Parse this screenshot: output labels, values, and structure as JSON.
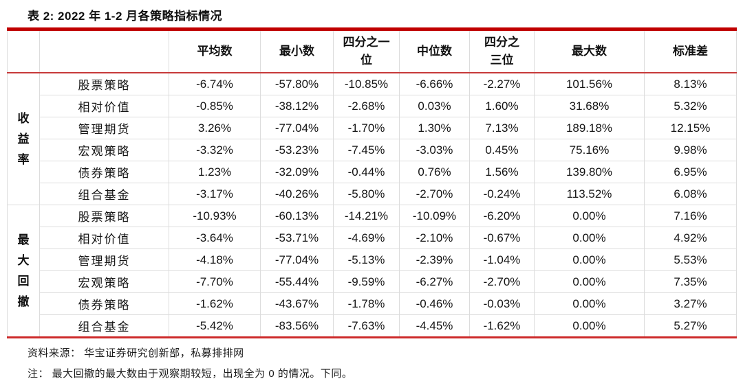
{
  "title": "表 2:  2022 年 1-2 月各策略指标情况",
  "table": {
    "column_headers": [
      "平均数",
      "最小数",
      "四分之一\n位",
      "中位数",
      "四分之\n三位",
      "最大数",
      "标准差"
    ],
    "groups": [
      {
        "label": "收益率",
        "rows": [
          {
            "name": "股票策略",
            "values": [
              "-6.74%",
              "-57.80%",
              "-10.85%",
              "-6.66%",
              "-2.27%",
              "101.56%",
              "8.13%"
            ]
          },
          {
            "name": "相对价值",
            "values": [
              "-0.85%",
              "-38.12%",
              "-2.68%",
              "0.03%",
              "1.60%",
              "31.68%",
              "5.32%"
            ]
          },
          {
            "name": "管理期货",
            "values": [
              "3.26%",
              "-77.04%",
              "-1.70%",
              "1.30%",
              "7.13%",
              "189.18%",
              "12.15%"
            ]
          },
          {
            "name": "宏观策略",
            "values": [
              "-3.32%",
              "-53.23%",
              "-7.45%",
              "-3.03%",
              "0.45%",
              "75.16%",
              "9.98%"
            ]
          },
          {
            "name": "债券策略",
            "values": [
              "1.23%",
              "-32.09%",
              "-0.44%",
              "0.76%",
              "1.56%",
              "139.80%",
              "6.95%"
            ]
          },
          {
            "name": "组合基金",
            "values": [
              "-3.17%",
              "-40.26%",
              "-5.80%",
              "-2.70%",
              "-0.24%",
              "113.52%",
              "6.08%"
            ]
          }
        ]
      },
      {
        "label": "最大回撤",
        "rows": [
          {
            "name": "股票策略",
            "values": [
              "-10.93%",
              "-60.13%",
              "-14.21%",
              "-10.09%",
              "-6.20%",
              "0.00%",
              "7.16%"
            ]
          },
          {
            "name": "相对价值",
            "values": [
              "-3.64%",
              "-53.71%",
              "-4.69%",
              "-2.10%",
              "-0.67%",
              "0.00%",
              "4.92%"
            ]
          },
          {
            "name": "管理期货",
            "values": [
              "-4.18%",
              "-77.04%",
              "-5.13%",
              "-2.39%",
              "-1.04%",
              "0.00%",
              "5.53%"
            ]
          },
          {
            "name": "宏观策略",
            "values": [
              "-7.70%",
              "-55.44%",
              "-9.59%",
              "-6.27%",
              "-2.70%",
              "0.00%",
              "7.35%"
            ]
          },
          {
            "name": "债券策略",
            "values": [
              "-1.62%",
              "-43.67%",
              "-1.78%",
              "-0.46%",
              "-0.03%",
              "0.00%",
              "3.27%"
            ]
          },
          {
            "name": "组合基金",
            "values": [
              "-5.42%",
              "-83.56%",
              "-7.63%",
              "-4.45%",
              "-1.62%",
              "0.00%",
              "5.27%"
            ]
          }
        ]
      }
    ]
  },
  "footer": {
    "source": "资料来源： 华宝证券研究创新部，私募排排网",
    "note": "注： 最大回撤的最大数由于观察期较短，出现全为 0 的情况。下同。"
  },
  "colors": {
    "accent_red_top": "#c00000",
    "rule_red_header": "#c73a3a",
    "rule_red_bottom": "#cd2a2a",
    "grid_gray": "#dcdcdc"
  }
}
